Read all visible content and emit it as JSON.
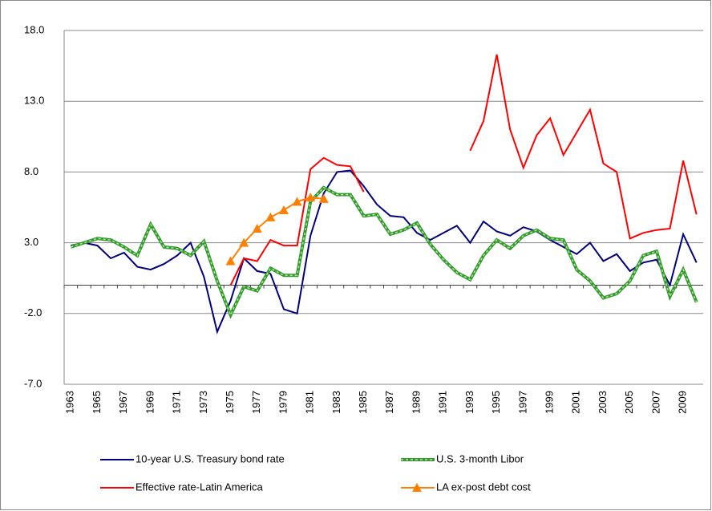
{
  "chart_data": {
    "type": "line",
    "categories": [
      "1963",
      null,
      "1965",
      null,
      "1967",
      null,
      "1969",
      null,
      "1971",
      null,
      "1973",
      null,
      "1975",
      null,
      "1977",
      null,
      "1979",
      null,
      "1981",
      null,
      "1983",
      null,
      "1985",
      null,
      "1987",
      null,
      "1989",
      null,
      "1991",
      null,
      "1993",
      null,
      "1995",
      null,
      "1997",
      null,
      "1999",
      null,
      "2001",
      null,
      "2003",
      null,
      "2005",
      null,
      "2007",
      null,
      "2009",
      null
    ],
    "series": [
      {
        "name": "10-year U.S. Treasury bond rate",
        "color": "#00007f",
        "values": [
          2.8,
          3.0,
          2.8,
          1.9,
          2.3,
          1.3,
          1.1,
          1.5,
          2.1,
          3.0,
          0.6,
          -3.3,
          -1.1,
          1.9,
          1.0,
          0.8,
          -1.7,
          -2.0,
          3.5,
          6.5,
          8.0,
          8.1,
          7.0,
          5.7,
          4.9,
          4.8,
          3.7,
          3.2,
          3.7,
          4.2,
          3.0,
          4.5,
          3.8,
          3.5,
          4.1,
          3.8,
          3.2,
          2.7,
          2.2,
          3.0,
          1.7,
          2.2,
          1.0,
          1.6,
          1.8,
          0.0,
          3.6,
          1.6
        ]
      },
      {
        "name": "U.S. 3-month Libor",
        "color": "#339933",
        "dashed": true,
        "values": [
          2.7,
          3.0,
          3.3,
          3.2,
          2.7,
          2.1,
          4.3,
          2.7,
          2.6,
          2.1,
          3.1,
          0.3,
          -2.1,
          -0.1,
          -0.4,
          1.2,
          0.7,
          0.7,
          5.9,
          6.9,
          6.4,
          6.4,
          4.9,
          5.0,
          3.6,
          3.9,
          4.4,
          2.9,
          1.8,
          0.9,
          0.4,
          2.1,
          3.2,
          2.6,
          3.5,
          3.9,
          3.3,
          3.2,
          1.1,
          0.3,
          -0.9,
          -0.6,
          0.3,
          2.1,
          2.4,
          -0.8,
          1.1,
          -1.2
        ]
      },
      {
        "name": "Effective rate-Latin America",
        "color": "#ff0000",
        "values": [
          null,
          null,
          null,
          null,
          null,
          null,
          null,
          null,
          null,
          null,
          null,
          null,
          0.0,
          1.9,
          1.7,
          3.2,
          2.8,
          2.8,
          8.2,
          9.0,
          8.5,
          8.4,
          6.6,
          null,
          null,
          null,
          null,
          null,
          null,
          null,
          9.5,
          11.6,
          16.3,
          11.0,
          8.3,
          10.6,
          11.8,
          9.2,
          10.8,
          12.4,
          8.6,
          8.0,
          3.3,
          3.7,
          3.9,
          4.0,
          8.8,
          5.0
        ]
      },
      {
        "name": "LA ex-post debt cost",
        "color": "#ff8000",
        "marker": "triangle",
        "values": [
          null,
          null,
          null,
          null,
          null,
          null,
          null,
          null,
          null,
          null,
          null,
          null,
          1.7,
          3.0,
          4.0,
          4.8,
          5.3,
          5.9,
          6.2,
          6.1,
          null,
          null,
          null,
          null,
          null,
          null,
          null,
          null,
          null,
          null,
          null,
          null,
          null,
          null,
          null,
          null,
          null,
          null,
          null,
          null,
          null,
          null,
          null,
          null,
          null,
          null,
          null,
          null
        ]
      }
    ],
    "ylim": [
      -7,
      18
    ],
    "yticks": [
      {
        "value": -7,
        "label": "-7.0"
      },
      {
        "value": -2,
        "label": "-2.0"
      },
      {
        "value": 3,
        "label": "3.0"
      },
      {
        "value": 8,
        "label": "8.0"
      },
      {
        "value": 13,
        "label": "13.0"
      },
      {
        "value": 18,
        "label": "18.0"
      }
    ],
    "grid": true,
    "legend": "bottom"
  }
}
